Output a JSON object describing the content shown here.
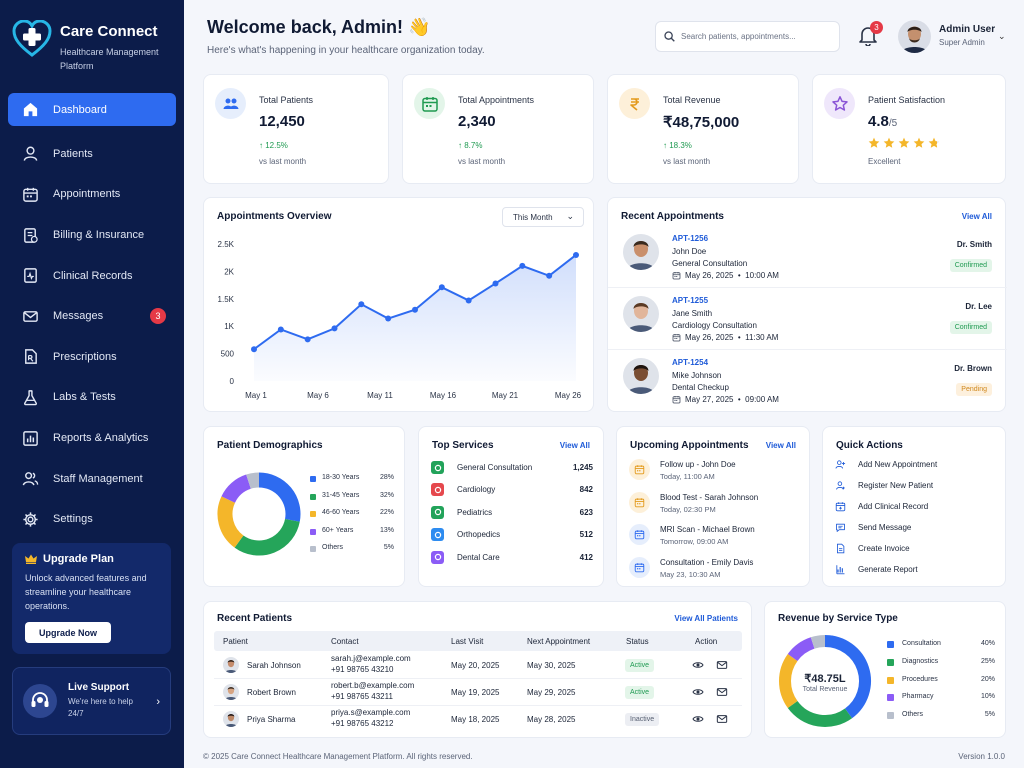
{
  "app": {
    "name": "Care Connect",
    "subtitle": "Healthcare Management Platform"
  },
  "colors": {
    "sidebar": "#0c1c4a",
    "accent": "#2e6bf0",
    "success": "#1f9a51",
    "warning": "#d0881d",
    "danger": "#e53946"
  },
  "sidebar": {
    "items": [
      {
        "label": "Dashboard",
        "icon": "home-icon",
        "active": true
      },
      {
        "label": "Patients",
        "icon": "user-icon"
      },
      {
        "label": "Appointments",
        "icon": "calendar-icon"
      },
      {
        "label": "Billing & Insurance",
        "icon": "billing-icon"
      },
      {
        "label": "Clinical Records",
        "icon": "records-icon"
      },
      {
        "label": "Messages",
        "icon": "mail-icon",
        "badge": "3"
      },
      {
        "label": "Prescriptions",
        "icon": "prescription-icon"
      },
      {
        "label": "Labs & Tests",
        "icon": "flask-icon"
      },
      {
        "label": "Reports & Analytics",
        "icon": "bar-chart-icon"
      },
      {
        "label": "Staff Management",
        "icon": "team-icon"
      },
      {
        "label": "Settings",
        "icon": "gear-icon"
      }
    ],
    "upgrade": {
      "title": "Upgrade Plan",
      "text": "Unlock advanced features and streamline your healthcare operations.",
      "button": "Upgrade Now"
    },
    "support": {
      "title": "Live Support",
      "text": "We're here to help 24/7"
    }
  },
  "header": {
    "welcome": "Welcome back, Admin! 👋",
    "subtitle": "Here's what's happening in your healthcare organization today.",
    "search_placeholder": "Search patients, appointments...",
    "notification_count": "3",
    "user_name": "Admin User",
    "user_role": "Super Admin"
  },
  "stats": [
    {
      "label": "Total Patients",
      "value": "12,450",
      "change": "↑ 12.5%",
      "sub": "vs last month",
      "icon": "patients-icon",
      "bg": "#e6eefc",
      "fg": "#2e6bf0"
    },
    {
      "label": "Total Appointments",
      "value": "2,340",
      "change": "↑ 8.7%",
      "sub": "vs last month",
      "icon": "calendar-icon",
      "bg": "#e3f5e9",
      "fg": "#1f9a51"
    },
    {
      "label": "Total Revenue",
      "value": "₹48,75,000",
      "change": "↑ 18.3%",
      "sub": "vs last month",
      "icon": "rupee-icon",
      "bg": "#fdf0d9",
      "fg": "#e39a1c"
    },
    {
      "label": "Patient Satisfaction",
      "value": "4.8",
      "value_suffix": "/5",
      "sub": "Excellent",
      "rating": 4.8,
      "icon": "star-icon",
      "bg": "#efe7fb",
      "fg": "#8a55d6"
    }
  ],
  "overview": {
    "title": "Appointments Overview",
    "filter": "This Month"
  },
  "chart_data": [
    {
      "type": "area",
      "title": "Appointments Overview",
      "x_ticks": [
        "May 1",
        "May 6",
        "May 11",
        "May 16",
        "May 21",
        "May 26"
      ],
      "y_ticks": [
        "2.5K",
        "2K",
        "1.5K",
        "1K",
        "500",
        "0"
      ],
      "ylim": [
        0,
        2500
      ],
      "values": [
        580,
        940,
        760,
        960,
        1400,
        1140,
        1300,
        1710,
        1470,
        1780,
        2100,
        1920,
        2300
      ]
    },
    {
      "type": "pie",
      "title": "Patient Demographics",
      "categories": [
        "18-30 Years",
        "31-45 Years",
        "46-60 Years",
        "60+ Years",
        "Others"
      ],
      "values": [
        28,
        32,
        22,
        13,
        5
      ]
    },
    {
      "type": "pie",
      "title": "Revenue by Service Type",
      "categories": [
        "Consultation",
        "Diagnostics",
        "Procedures",
        "Pharmacy",
        "Others"
      ],
      "values": [
        40,
        25,
        20,
        10,
        5
      ],
      "center_value": "₹48.75L",
      "center_label": "Total Revenue"
    }
  ],
  "recent_appointments": {
    "title": "Recent Appointments",
    "view_all": "View All",
    "items": [
      {
        "id": "APT-1256",
        "patient": "John Doe",
        "type": "General Consultation",
        "datetime": "May 26, 2025  •  10:00 AM",
        "doctor": "Dr. Smith",
        "status": "Confirmed",
        "status_class": "confirmed",
        "skin": "#c98f6b",
        "hair": "#3a2a1e"
      },
      {
        "id": "APT-1255",
        "patient": "Jane Smith",
        "type": "Cardiology Consultation",
        "datetime": "May 26, 2025  •  11:30 AM",
        "doctor": "Dr. Lee",
        "status": "Confirmed",
        "status_class": "confirmed",
        "skin": "#e1b59a",
        "hair": "#5a3a24"
      },
      {
        "id": "APT-1254",
        "patient": "Mike Johnson",
        "type": "Dental Checkup",
        "datetime": "May 27, 2025  •  09:00 AM",
        "doctor": "Dr. Brown",
        "status": "Pending",
        "status_class": "pending",
        "skin": "#7a4e33",
        "hair": "#1e140e"
      }
    ]
  },
  "demographics": {
    "title": "Patient Demographics",
    "legend": [
      {
        "label": "18-30 Years",
        "pct": "28%",
        "color": "#2e6bf0"
      },
      {
        "label": "31-45 Years",
        "pct": "32%",
        "color": "#25a55a"
      },
      {
        "label": "46-60 Years",
        "pct": "22%",
        "color": "#f4b62a"
      },
      {
        "label": "60+ Years",
        "pct": "13%",
        "color": "#8b5cf6"
      },
      {
        "label": "Others",
        "pct": "5%",
        "color": "#b8bfcc"
      }
    ]
  },
  "top_services": {
    "title": "Top Services",
    "view_all": "View All",
    "items": [
      {
        "name": "General Consultation",
        "count": "1,245",
        "bg": "#22a35a"
      },
      {
        "name": "Cardiology",
        "count": "842",
        "bg": "#e5484d"
      },
      {
        "name": "Pediatrics",
        "count": "623",
        "bg": "#22a35a"
      },
      {
        "name": "Orthopedics",
        "count": "512",
        "bg": "#2e8cf0"
      },
      {
        "name": "Dental Care",
        "count": "412",
        "bg": "#8b5cf6"
      }
    ]
  },
  "upcoming": {
    "title": "Upcoming Appointments",
    "view_all": "View All",
    "items": [
      {
        "title": "Follow up - John Doe",
        "when": "Today, 11:00 AM",
        "bg": "#fdf0d9",
        "fg": "#e39a1c"
      },
      {
        "title": "Blood Test - Sarah Johnson",
        "when": "Today, 02:30 PM",
        "bg": "#fdf0d9",
        "fg": "#e39a1c"
      },
      {
        "title": "MRI Scan - Michael Brown",
        "when": "Tomorrow, 09:00 AM",
        "bg": "#e6eefc",
        "fg": "#2e6bf0"
      },
      {
        "title": "Consultation - Emily Davis",
        "when": "May 23, 10:30 AM",
        "bg": "#e6eefc",
        "fg": "#2e6bf0"
      }
    ]
  },
  "quick_actions": {
    "title": "Quick Actions",
    "items": [
      {
        "label": "Add New Appointment",
        "icon": "user-plus-icon"
      },
      {
        "label": "Register New Patient",
        "icon": "user-add-icon"
      },
      {
        "label": "Add Clinical Record",
        "icon": "calendar-plus-icon"
      },
      {
        "label": "Send Message",
        "icon": "message-icon"
      },
      {
        "label": "Create Invoice",
        "icon": "invoice-icon"
      },
      {
        "label": "Generate Report",
        "icon": "report-icon"
      }
    ]
  },
  "recent_patients": {
    "title": "Recent Patients",
    "view_all": "View All Patients",
    "columns": [
      "Patient",
      "Contact",
      "Last Visit",
      "Next Appointment",
      "Status",
      "Action"
    ],
    "rows": [
      {
        "name": "Sarah Johnson",
        "email": "sarah.j@example.com",
        "phone": "+91 98765 43210",
        "last": "May 20, 2025",
        "next": "May 30, 2025",
        "status": "Active",
        "status_class": "active",
        "skin": "#c58c6c",
        "hair": "#2e1f16"
      },
      {
        "name": "Robert Brown",
        "email": "robert.b@example.com",
        "phone": "+91 98765 43211",
        "last": "May 19, 2025",
        "next": "May 29, 2025",
        "status": "Active",
        "status_class": "active",
        "skin": "#d6a482",
        "hair": "#3b2c22"
      },
      {
        "name": "Priya Sharma",
        "email": "priya.s@example.com",
        "phone": "+91 98765 43212",
        "last": "May 18, 2025",
        "next": "May 28, 2025",
        "status": "Inactive",
        "status_class": "inactive",
        "skin": "#bd8766",
        "hair": "#1b1110"
      }
    ]
  },
  "revenue": {
    "title": "Revenue by Service Type",
    "center_value": "₹48.75L",
    "center_label": "Total Revenue",
    "legend": [
      {
        "label": "Consultation",
        "pct": "40%",
        "color": "#2e6bf0"
      },
      {
        "label": "Diagnostics",
        "pct": "25%",
        "color": "#25a55a"
      },
      {
        "label": "Procedures",
        "pct": "20%",
        "color": "#f4b62a"
      },
      {
        "label": "Pharmacy",
        "pct": "10%",
        "color": "#8b5cf6"
      },
      {
        "label": "Others",
        "pct": "5%",
        "color": "#b8bfcc"
      }
    ]
  },
  "footer": {
    "copyright": "© 2025 Care Connect Healthcare Management Platform. All rights reserved.",
    "version": "Version 1.0.0"
  }
}
